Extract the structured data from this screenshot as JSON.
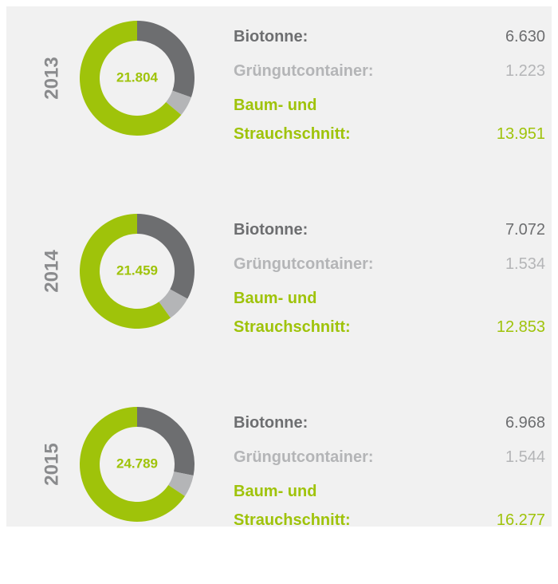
{
  "chart_data": [
    {
      "type": "pie",
      "title": "2013",
      "categories": [
        "Biotonne:",
        "Grüngutcontainer:",
        "Baum- und Strauchschnitt:"
      ],
      "values": [
        6630,
        1223,
        13951
      ],
      "value_labels": [
        "6.630",
        "1.223",
        "13.951"
      ],
      "colors": [
        "#6d6e70",
        "#b4b5b7",
        "#9fc30a"
      ],
      "total": {
        "value": 21804,
        "label": "21.804"
      }
    },
    {
      "type": "pie",
      "title": "2014",
      "categories": [
        "Biotonne:",
        "Grüngutcontainer:",
        "Baum- und Strauchschnitt:"
      ],
      "values": [
        7072,
        1534,
        12853
      ],
      "value_labels": [
        "7.072",
        "1.534",
        "12.853"
      ],
      "colors": [
        "#6d6e70",
        "#b4b5b7",
        "#9fc30a"
      ],
      "total": {
        "value": 21459,
        "label": "21.459"
      }
    },
    {
      "type": "pie",
      "title": "2015",
      "categories": [
        "Biotonne:",
        "Grüngutcontainer:",
        "Baum- und Strauchschnitt:"
      ],
      "values": [
        6968,
        1544,
        16277
      ],
      "value_labels": [
        "6.968",
        "1.544",
        "16.277"
      ],
      "colors": [
        "#6d6e70",
        "#b4b5b7",
        "#9fc30a"
      ],
      "total": {
        "value": 24789,
        "label": "24.789"
      }
    }
  ]
}
